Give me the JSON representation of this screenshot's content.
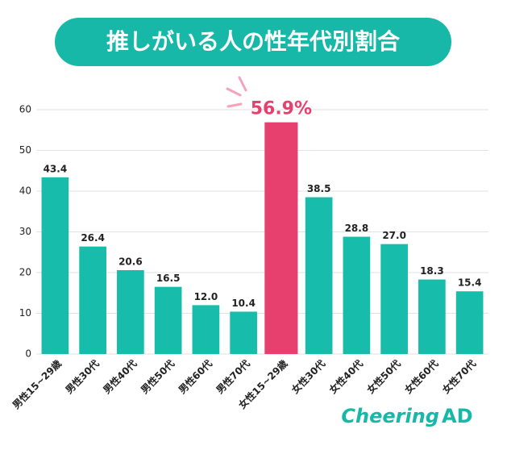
{
  "chart_data": {
    "type": "bar",
    "title": "推しがいる人の性年代別割合",
    "categories": [
      "男性15~29歳",
      "男性30代",
      "男性40代",
      "男性50代",
      "男性60代",
      "男性70代",
      "女性15~29歳",
      "女性30代",
      "女性40代",
      "女性50代",
      "女性60代",
      "女性70代"
    ],
    "values": [
      43.4,
      26.4,
      20.6,
      16.5,
      12.0,
      10.4,
      56.9,
      38.5,
      28.8,
      27.0,
      18.3,
      15.4
    ],
    "value_labels": [
      "43.4",
      "26.4",
      "20.6",
      "16.5",
      "12.0",
      "10.4",
      "56.9%",
      "38.5",
      "28.8",
      "27.0",
      "18.3",
      "15.4"
    ],
    "colors": [
      "#17bcab",
      "#17bcab",
      "#17bcab",
      "#17bcab",
      "#17bcab",
      "#17bcab",
      "#e8406e",
      "#17bcab",
      "#17bcab",
      "#17bcab",
      "#17bcab",
      "#17bcab"
    ],
    "ylim": [
      0,
      60
    ],
    "yticks": [
      0,
      10,
      20,
      30,
      40,
      50,
      60
    ],
    "grid": true
  },
  "logo": {
    "name": "Cheering",
    "suffix": "AD"
  }
}
